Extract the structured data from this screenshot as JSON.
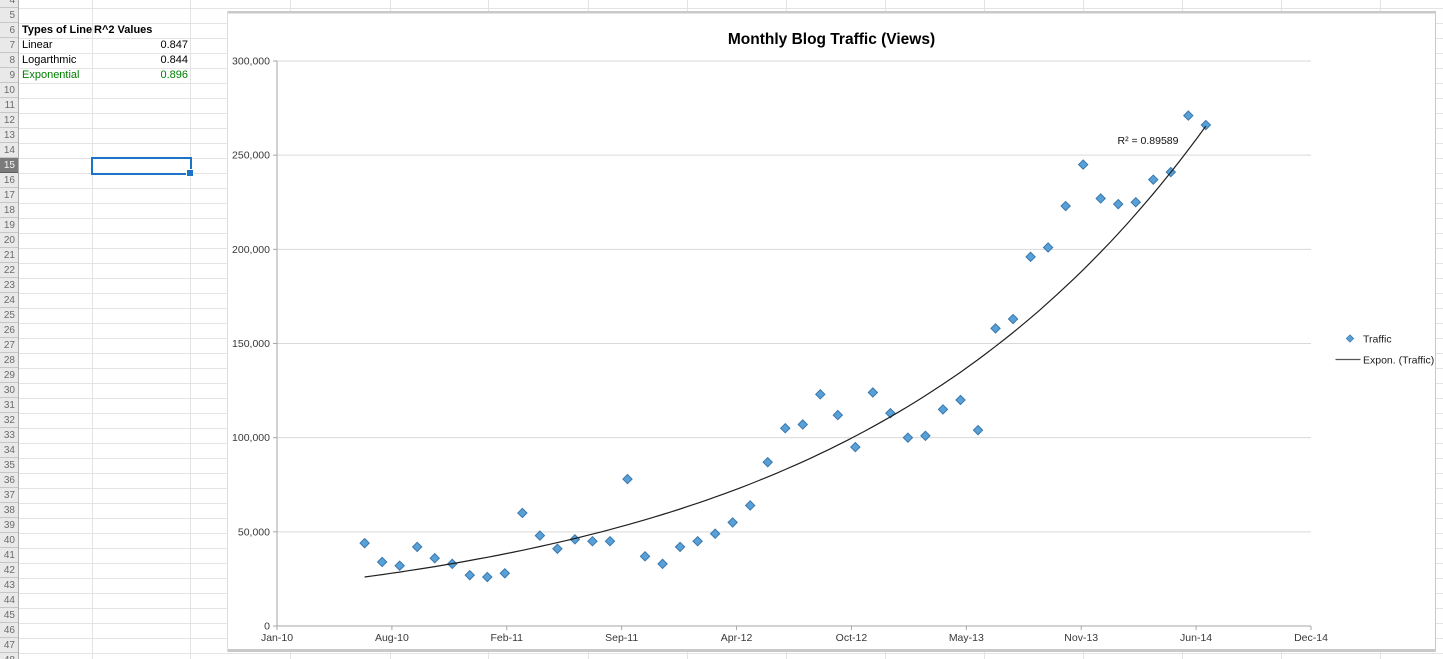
{
  "sheet": {
    "gutter_rows": [
      "4",
      "5",
      "6",
      "7",
      "8",
      "9",
      "10",
      "11",
      "12",
      "13",
      "14",
      "15",
      "16",
      "17",
      "18",
      "19",
      "20",
      "21",
      "22",
      "23",
      "24",
      "25",
      "26",
      "27",
      "28",
      "29",
      "30",
      "31",
      "32",
      "33",
      "34",
      "35",
      "36",
      "37",
      "38",
      "39",
      "40",
      "41",
      "42",
      "43",
      "44",
      "45",
      "46",
      "47",
      "48"
    ],
    "selected_row_label": "15",
    "selected_cell": "B15",
    "table": {
      "header": {
        "types": "Types of Line",
        "r2": "R^2 Values"
      },
      "rows": [
        {
          "label": "Linear",
          "value": "0.847"
        },
        {
          "label": "Logarthmic",
          "value": "0.844"
        },
        {
          "label": "Exponential",
          "value": "0.896"
        }
      ],
      "highlight_color": "#008000"
    }
  },
  "chart_data": {
    "type": "scatter",
    "title": "Monthly Blog Traffic (Views)",
    "x": [
      "Jun-10",
      "Jul-10",
      "Aug-10",
      "Sep-10",
      "Oct-10",
      "Nov-10",
      "Dec-10",
      "Jan-11",
      "Feb-11",
      "Mar-11",
      "Apr-11",
      "May-11",
      "Jun-11",
      "Jul-11",
      "Aug-11",
      "Sep-11",
      "Oct-11",
      "Nov-11",
      "Dec-11",
      "Jan-12",
      "Feb-12",
      "Mar-12",
      "Apr-12",
      "May-12",
      "Jun-12",
      "Jul-12",
      "Aug-12",
      "Sep-12",
      "Oct-12",
      "Nov-12",
      "Dec-12",
      "Jan-13",
      "Feb-13",
      "Mar-13",
      "Apr-13",
      "May-13",
      "Jun-13",
      "Jul-13",
      "Aug-13",
      "Sep-13",
      "Oct-13",
      "Nov-13",
      "Dec-13",
      "Jan-14",
      "Feb-14",
      "Mar-14",
      "Apr-14",
      "May-14",
      "Jun-14"
    ],
    "series": [
      {
        "name": "Traffic",
        "values": [
          44000,
          34000,
          32000,
          42000,
          36000,
          33000,
          27000,
          26000,
          28000,
          60000,
          48000,
          41000,
          46000,
          45000,
          45000,
          78000,
          37000,
          33000,
          42000,
          45000,
          49000,
          55000,
          64000,
          87000,
          105000,
          107000,
          123000,
          112000,
          95000,
          124000,
          113000,
          100000,
          101000,
          115000,
          120000,
          104000,
          158000,
          163000,
          196000,
          201000,
          223000,
          245000,
          227000,
          224000,
          225000,
          237000,
          241000,
          271000,
          266000
        ]
      }
    ],
    "trendline": {
      "label": "Expon. (Traffic)",
      "type": "exponential",
      "start_value": 26000,
      "growth_per_month": 0.0484,
      "r2": 0.89589,
      "annotation": "R² = 0.89589"
    },
    "x_tick_labels": [
      "Jan-10",
      "Aug-10",
      "Feb-11",
      "Sep-11",
      "Apr-12",
      "Oct-12",
      "May-13",
      "Nov-13",
      "Jun-14",
      "Dec-14"
    ],
    "y_tick_labels": [
      "0",
      "50,000",
      "100,000",
      "150,000",
      "200,000",
      "250,000",
      "300,000"
    ],
    "ylim": [
      0,
      300000
    ],
    "x_axis_total_months": 59,
    "grid": true,
    "legend": {
      "position": "right",
      "traffic": "Traffic",
      "expon": "Expon. (Traffic)"
    },
    "colors": {
      "marker_fill": "#58A1D8",
      "marker_stroke": "#3A77AC",
      "trendline": "#1F1F1F",
      "gridline": "#D9D9D9",
      "axis": "#A6A6A6",
      "tick_text": "#383838"
    }
  }
}
